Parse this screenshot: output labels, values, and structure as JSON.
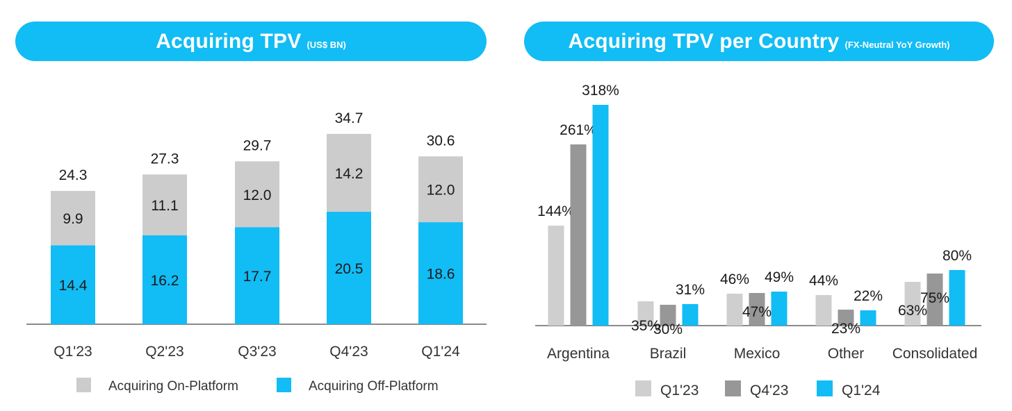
{
  "colors": {
    "accent": "#12bcf5",
    "on_platform": "#cccccc",
    "q1_23": "#cfcfcf",
    "q4_23": "#979797",
    "q1_24": "#12bcf5"
  },
  "left_title": {
    "main": "Acquiring TPV",
    "sub": "(US$ BN)"
  },
  "right_title": {
    "main": "Acquiring TPV per Country",
    "sub": "(FX-Neutral YoY Growth)"
  },
  "chart_data": [
    {
      "type": "bar",
      "stacked": true,
      "title": "Acquiring TPV",
      "subtitle": "(US$ BN)",
      "categories": [
        "Q1'23",
        "Q2'23",
        "Q3'23",
        "Q4'23",
        "Q1'24"
      ],
      "series": [
        {
          "name": "Acquiring Off-Platform",
          "values": [
            14.4,
            16.2,
            17.7,
            20.5,
            18.6
          ],
          "labels": [
            "14.4",
            "16.2",
            "17.7",
            "20.5",
            "18.6"
          ],
          "color": "#12bcf5"
        },
        {
          "name": "Acquiring On-Platform",
          "values": [
            9.9,
            11.1,
            12.0,
            14.2,
            12.0
          ],
          "labels": [
            "9.9",
            "11.1",
            "12.0",
            "14.2",
            "12.0"
          ],
          "color": "#cccccc"
        }
      ],
      "totals": [
        24.3,
        27.3,
        29.7,
        34.7,
        30.6
      ],
      "total_labels": [
        "24.3",
        "27.3",
        "29.7",
        "34.7",
        "30.6"
      ],
      "legend": {
        "placement": "bottom",
        "items": [
          "Acquiring On-Platform",
          "Acquiring Off-Platform"
        ]
      },
      "ylim": [
        0,
        40
      ],
      "grid": false
    },
    {
      "type": "bar",
      "stacked": false,
      "title": "Acquiring TPV per Country",
      "subtitle": "(FX-Neutral YoY Growth)",
      "categories": [
        "Argentina",
        "Brazil",
        "Mexico",
        "Other",
        "Consolidated"
      ],
      "series": [
        {
          "name": "Q1'23",
          "values": [
            144,
            35,
            46,
            44,
            63
          ],
          "labels": [
            "144%",
            "35%",
            "46%",
            "44%",
            "63%"
          ],
          "color": "#cfcfcf"
        },
        {
          "name": "Q4'23",
          "values": [
            261,
            30,
            47,
            23,
            75
          ],
          "labels": [
            "261%",
            "30%",
            "47%",
            "23%",
            "75%"
          ],
          "color": "#979797"
        },
        {
          "name": "Q1'24",
          "values": [
            318,
            31,
            49,
            22,
            80
          ],
          "labels": [
            "318%",
            "31%",
            "49%",
            "22%",
            "80%"
          ],
          "color": "#12bcf5"
        }
      ],
      "legend": {
        "placement": "bottom",
        "items": [
          "Q1'23",
          "Q4'23",
          "Q1'24"
        ]
      },
      "ylim": [
        0,
        330
      ],
      "grid": false
    }
  ]
}
